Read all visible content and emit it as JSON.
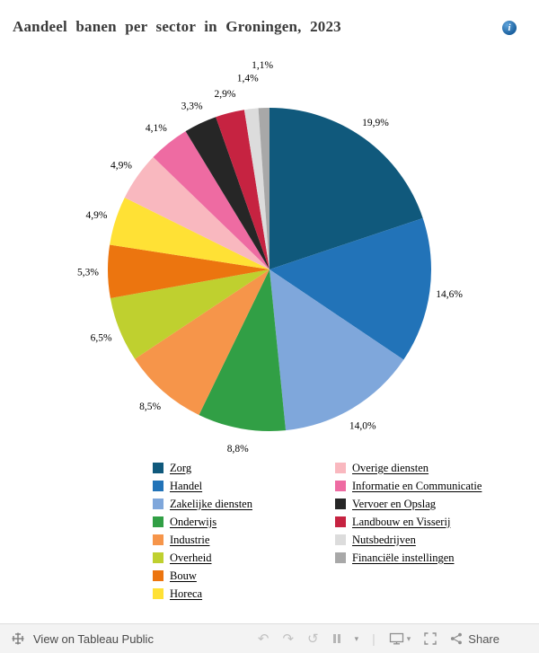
{
  "header": {
    "title": "Aandeel banen per sector in Groningen, 2023"
  },
  "chart_data": {
    "type": "pie",
    "title": "Aandeel banen per sector in Groningen, 2023",
    "start_angle_deg": 0,
    "direction": "clockwise",
    "legend_position": "bottom-two-columns",
    "slices": [
      {
        "label": "Zorg",
        "value": 19.9,
        "display": "19,9%",
        "color": "#10597c"
      },
      {
        "label": "Handel",
        "value": 14.6,
        "display": "14,6%",
        "color": "#2273b8"
      },
      {
        "label": "Zakelijke diensten",
        "value": 14.0,
        "display": "14,0%",
        "color": "#7fa7db"
      },
      {
        "label": "Onderwijs",
        "value": 8.8,
        "display": "8,8%",
        "color": "#319f45"
      },
      {
        "label": "Industrie",
        "value": 8.5,
        "display": "8,5%",
        "color": "#f6954a"
      },
      {
        "label": "Overheid",
        "value": 6.5,
        "display": "6,5%",
        "color": "#bfd02f"
      },
      {
        "label": "Bouw",
        "value": 5.3,
        "display": "5,3%",
        "color": "#ec750f"
      },
      {
        "label": "Horeca",
        "value": 4.9,
        "display": "4,9%",
        "color": "#ffe135"
      },
      {
        "label": "Overige diensten",
        "value": 4.9,
        "display": "4,9%",
        "color": "#f9b8bf"
      },
      {
        "label": "Informatie en Communicatie",
        "value": 4.1,
        "display": "4,1%",
        "color": "#ee6ba2"
      },
      {
        "label": "Vervoer en Opslag",
        "value": 3.3,
        "display": "3,3%",
        "color": "#262626"
      },
      {
        "label": "Landbouw en Visserij",
        "value": 2.9,
        "display": "2,9%",
        "color": "#c62341"
      },
      {
        "label": "Nutsbedrijven",
        "value": 1.4,
        "display": "1,4%",
        "color": "#dcdcdc"
      },
      {
        "label": "Financiële instellingen",
        "value": 1.1,
        "display": "1,1%",
        "color": "#a8a8a8"
      }
    ]
  },
  "toolbar": {
    "view_label": "View on Tableau Public",
    "share_label": "Share"
  }
}
